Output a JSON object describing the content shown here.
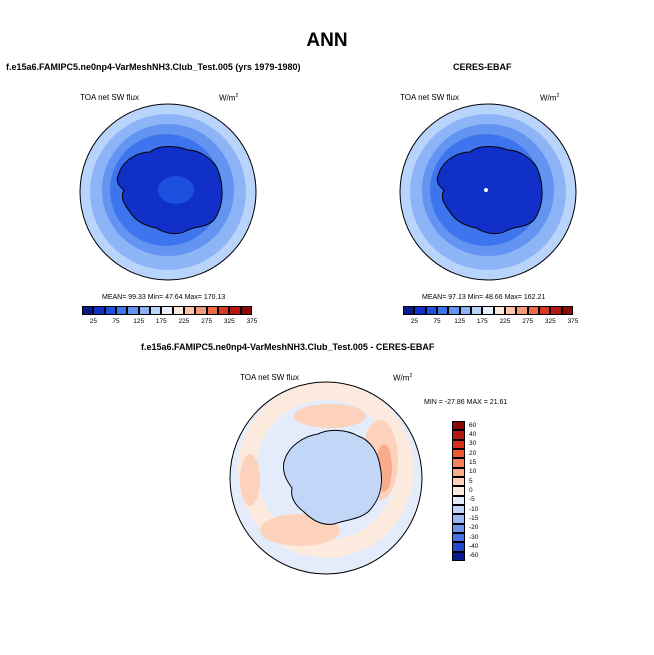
{
  "title": "ANN",
  "panels": [
    {
      "id": "model",
      "title": "f.e15a6.FAMIPC5.ne0np4-VarMeshNH3.Club_Test.005 (yrs 1979-1980)",
      "variable": "TOA net SW flux",
      "units": "W/m",
      "units_sup": "2",
      "stats": {
        "mean_label": "MEAN=",
        "mean": "99.33",
        "min_label": "Min=",
        "min": "47.64",
        "max_label": "Max=",
        "max": "170.13"
      }
    },
    {
      "id": "obs",
      "title": "CERES-EBAF",
      "variable": "TOA net SW flux",
      "units": "W/m",
      "units_sup": "2",
      "stats": {
        "mean_label": "MEAN=",
        "mean": "97.13",
        "min_label": "Min=",
        "min": "48.66",
        "max_label": "Max=",
        "max": "162.21"
      }
    }
  ],
  "diff_panel": {
    "title": "f.e15a6.FAMIPC5.ne0np4-VarMeshNH3.Club_Test.005 - CERES-EBAF",
    "variable": "TOA net SW flux",
    "units": "W/m",
    "units_sup": "2",
    "minmax": {
      "min_label": "MIN =",
      "min": "-27.86",
      "max_label": "MAX =",
      "max": "21.61"
    }
  },
  "colorbar_abs": {
    "colors": [
      "#0a1a8c",
      "#1030c8",
      "#1e50e0",
      "#3e74ee",
      "#6494f2",
      "#8cb4f6",
      "#b8d4fa",
      "#e8f0fe",
      "#fde8dc",
      "#f9c4a8",
      "#f49a78",
      "#ec6a44",
      "#d83a1e",
      "#b41810",
      "#8a0a0a"
    ],
    "labels": [
      "25",
      "75",
      "125",
      "175",
      "225",
      "275",
      "325",
      "375"
    ]
  },
  "colorbar_diff": {
    "colors": [
      "#8a0a0a",
      "#b41810",
      "#d8301a",
      "#ee5a2e",
      "#f5845c",
      "#f9ac8c",
      "#fcd2bc",
      "#fdeade",
      "#e4ecfb",
      "#c2d6f7",
      "#9ab8f2",
      "#6e94ec",
      "#4670e2",
      "#2248c8",
      "#0a1a8c"
    ],
    "labels": [
      "60",
      "40",
      "30",
      "20",
      "15",
      "10",
      "5",
      "0",
      "-5",
      "-10",
      "-15",
      "-20",
      "-30",
      "-40",
      "-60"
    ]
  },
  "map_colors": {
    "abs_outer": "#b8d4fa",
    "abs_ring1": "#8cb4f6",
    "abs_ring2": "#6494f2",
    "abs_ring3": "#3e74ee",
    "abs_land": "#1030c8",
    "abs_inland": "#1e50e0",
    "diff_base": "#e4ecfb",
    "diff_warm1": "#fdeade",
    "diff_warm2": "#fcd2bc",
    "diff_warm3": "#f9ac8c",
    "diff_cool": "#c2d6f7"
  }
}
